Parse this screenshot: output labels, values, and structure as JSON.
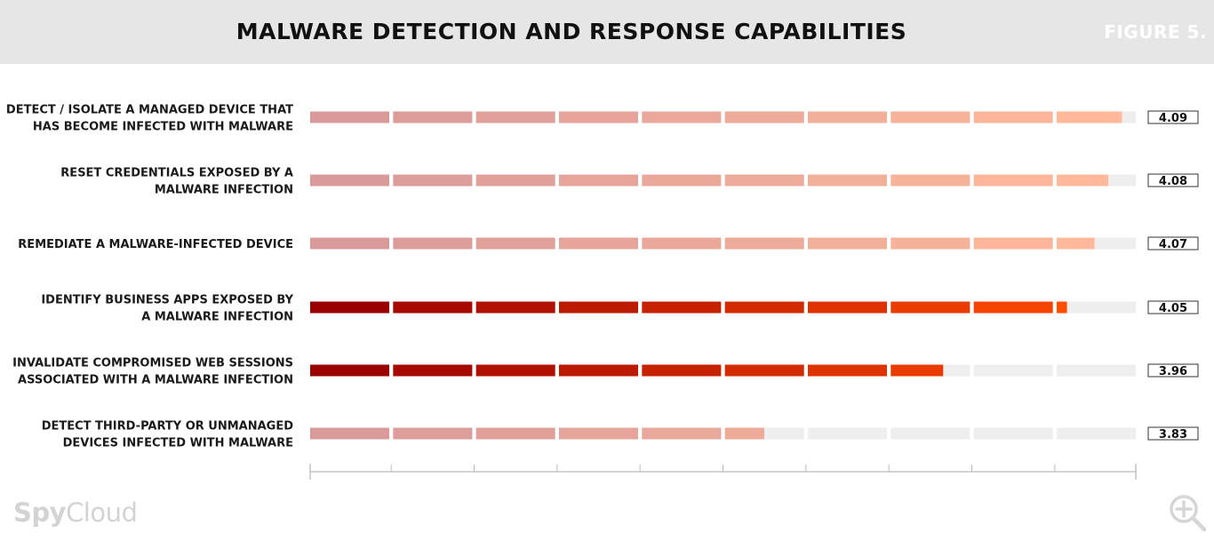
{
  "header": {
    "title": "MALWARE DETECTION AND RESPONSE CAPABILITIES",
    "figure_label": "FIGURE 5."
  },
  "brand": {
    "part1": "Spy",
    "part2": "Cloud"
  },
  "zoom": {
    "icon": "zoom-in-icon"
  },
  "colors": {
    "header_bg": "#e6e6e6",
    "track": "#eeeeee",
    "light_start": "#d99a9a",
    "light_end": "#ffb99a",
    "dark_start": "#9b0000",
    "dark_end": "#ff4d00",
    "axis": "#bbbbbb"
  },
  "chart_data": {
    "type": "bar",
    "orientation": "horizontal",
    "title": "MALWARE DETECTION AND RESPONSE CAPABILITIES",
    "xlim": [
      3.5,
      4.1
    ],
    "segments": 10,
    "categories": [
      [
        "DETECT / ISOLATE A MANAGED DEVICE THAT",
        "HAS BECOME INFECTED WITH MALWARE"
      ],
      [
        "RESET CREDENTIALS EXPOSED BY A",
        "MALWARE INFECTION"
      ],
      [
        "REMEDIATE A MALWARE-INFECTED DEVICE"
      ],
      [
        "IDENTIFY BUSINESS APPS EXPOSED BY",
        "A MALWARE INFECTION"
      ],
      [
        "INVALIDATE COMPROMISED WEB SESSIONS",
        "ASSOCIATED WITH A MALWARE INFECTION"
      ],
      [
        "DETECT THIRD-PARTY OR UNMANAGED",
        "DEVICES INFECTED WITH MALWARE"
      ]
    ],
    "values": [
      4.09,
      4.08,
      4.07,
      4.05,
      3.96,
      3.83
    ],
    "value_labels": [
      "4.09",
      "4.08",
      "4.07",
      "4.05",
      "3.96",
      "3.83"
    ],
    "highlight": [
      false,
      false,
      false,
      true,
      true,
      false
    ]
  }
}
